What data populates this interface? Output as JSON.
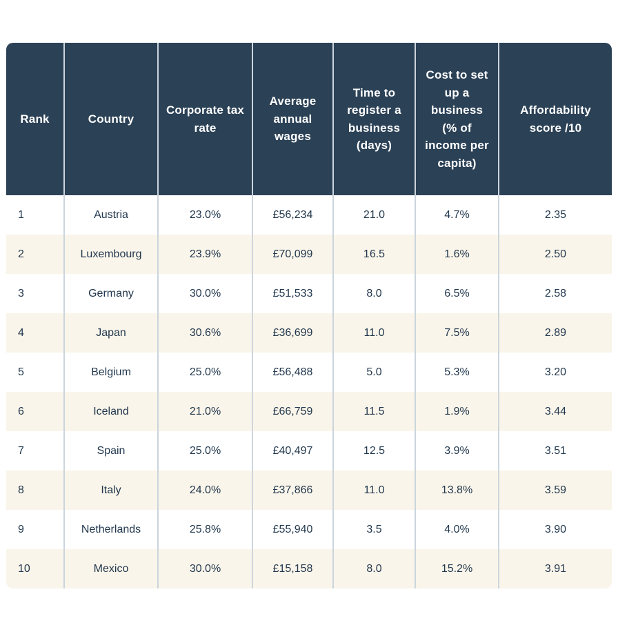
{
  "colors": {
    "header_bg": "#2B4156",
    "header_text": "#FFFFFF",
    "row_bg": "#FFFFFF",
    "row_alt_bg": "#FAF5EA",
    "body_text": "#22384E",
    "divider": "#CCD5DC",
    "page_bg": "#FFFFFF"
  },
  "chart_data": {
    "type": "table",
    "title": "",
    "columns": [
      "Rank",
      "Country",
      "Corporate tax rate",
      "Average annual wages",
      "Time to register a business (days)",
      "Cost to set up a business (% of income per capita)",
      "Affordability score /10"
    ],
    "rows": [
      [
        "1",
        "Austria",
        "23.0%",
        "£56,234",
        "21.0",
        "4.7%",
        "2.35"
      ],
      [
        "2",
        "Luxembourg",
        "23.9%",
        "£70,099",
        "16.5",
        "1.6%",
        "2.50"
      ],
      [
        "3",
        "Germany",
        "30.0%",
        "£51,533",
        "8.0",
        "6.5%",
        "2.58"
      ],
      [
        "4",
        "Japan",
        "30.6%",
        "£36,699",
        "11.0",
        "7.5%",
        "2.89"
      ],
      [
        "5",
        "Belgium",
        "25.0%",
        "£56,488",
        "5.0",
        "5.3%",
        "3.20"
      ],
      [
        "6",
        "Iceland",
        "21.0%",
        "£66,759",
        "11.5",
        "1.9%",
        "3.44"
      ],
      [
        "7",
        "Spain",
        "25.0%",
        "£40,497",
        "12.5",
        "3.9%",
        "3.51"
      ],
      [
        "8",
        "Italy",
        "24.0%",
        "£37,866",
        "11.0",
        "13.8%",
        "3.59"
      ],
      [
        "9",
        "Netherlands",
        "25.8%",
        "£55,940",
        "3.5",
        "4.0%",
        "3.90"
      ],
      [
        "10",
        "Mexico",
        "30.0%",
        "£15,158",
        "8.0",
        "15.2%",
        "3.91"
      ]
    ],
    "layout_hints": {
      "alternating_rows": true,
      "rank_column_align": "left",
      "other_columns_align": "center"
    }
  }
}
